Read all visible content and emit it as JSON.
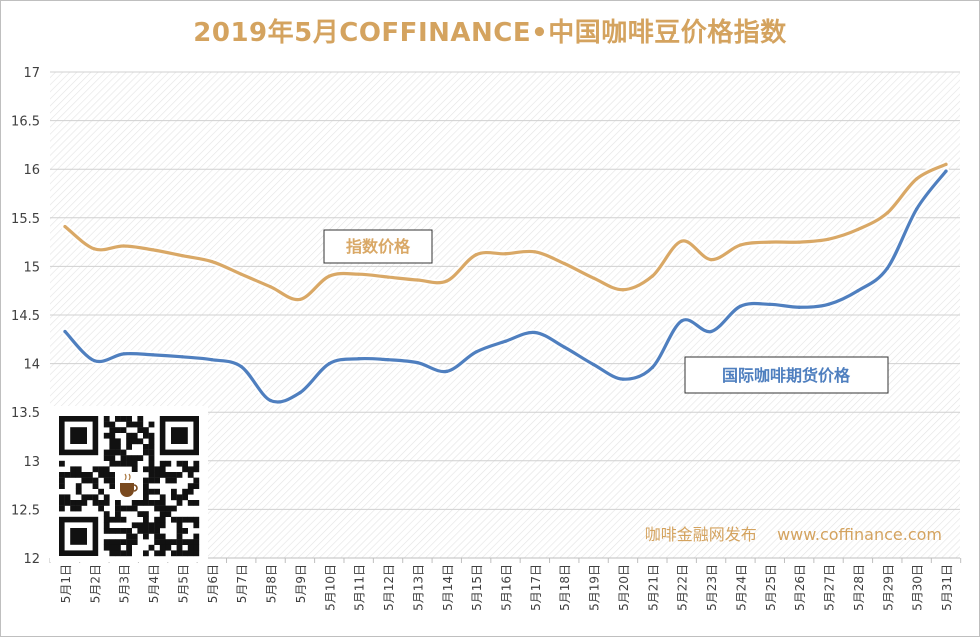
{
  "chart_data": {
    "type": "line",
    "title": "2019年5月COFFINANCE•中国咖啡豆价格指数",
    "categories": [
      "5月1日",
      "5月2日",
      "5月3日",
      "5月4日",
      "5月5日",
      "5月6日",
      "5月7日",
      "5月8日",
      "5月9日",
      "5月10日",
      "5月11日",
      "5月12日",
      "5月13日",
      "5月14日",
      "5月15日",
      "5月16日",
      "5月17日",
      "5月18日",
      "5月19日",
      "5月20日",
      "5月21日",
      "5月22日",
      "5月23日",
      "5月24日",
      "5月25日",
      "5月26日",
      "5月27日",
      "5月28日",
      "5月29日",
      "5月30日",
      "5月31日"
    ],
    "series": [
      {
        "name": "指数价格",
        "color": "#d9a866",
        "values": [
          15.41,
          15.18,
          15.21,
          15.17,
          15.11,
          15.05,
          14.92,
          14.79,
          14.66,
          14.9,
          14.92,
          14.89,
          14.86,
          14.85,
          15.12,
          15.13,
          15.15,
          15.03,
          14.88,
          14.76,
          14.9,
          15.26,
          15.07,
          15.22,
          15.25,
          15.25,
          15.28,
          15.38,
          15.55,
          15.9,
          16.05
        ]
      },
      {
        "name": "国际咖啡期货价格",
        "color": "#4f7fbf",
        "values": [
          14.33,
          14.03,
          14.1,
          14.09,
          14.07,
          14.04,
          13.97,
          13.62,
          13.7,
          14.0,
          14.05,
          14.04,
          14.01,
          13.92,
          14.12,
          14.23,
          14.32,
          14.17,
          13.99,
          13.84,
          13.96,
          14.44,
          14.33,
          14.59,
          14.61,
          14.58,
          14.61,
          14.75,
          14.98,
          15.59,
          15.98
        ]
      }
    ],
    "yticks": [
      "17",
      "16.5",
      "16",
      "15.5",
      "15",
      "14.5",
      "14",
      "13.5",
      "13",
      "12.5",
      "12"
    ],
    "ylim": [
      12,
      17
    ],
    "grid": true,
    "legend_labels": [
      "指数价格",
      "国际咖啡期货价格"
    ],
    "watermark": "咖啡金融网发布    www.coffinance.com"
  }
}
